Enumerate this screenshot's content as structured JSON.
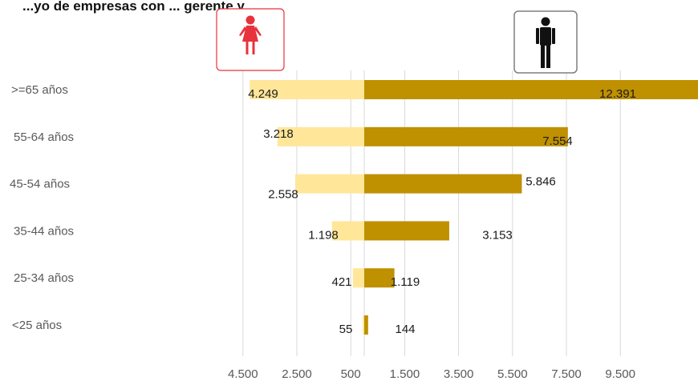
{
  "title_visible": "...yo de empresas con ... gerente y ...",
  "chart_data": {
    "type": "bar",
    "orientation": "horizontal",
    "layout": "population-pyramid",
    "categories": [
      ">=65 años",
      "55-64 años",
      "45-54 años",
      "35-44 años",
      "25-34 años",
      "<25 años"
    ],
    "series": [
      {
        "values": [
          4249,
          3218,
          2558,
          1198,
          421,
          55
        ],
        "color": "#FFE699",
        "side": "left"
      },
      {
        "values": [
          12391,
          7554,
          5846,
          3153,
          1119,
          144
        ],
        "color": "#BF9000",
        "side": "right"
      }
    ],
    "value_labels": {
      "left": [
        "4.249",
        "3.218",
        "2.558",
        "1.198",
        "421",
        "55"
      ],
      "right": [
        "12.391",
        "7.554",
        "5.846",
        "3.153",
        "1.119",
        "144"
      ]
    },
    "x_tick_labels": [
      "4.500",
      "2.500",
      "500",
      "1.500",
      "3.500",
      "5.500",
      "7.500",
      "9.500"
    ],
    "x_tick_values": [
      -4500,
      -2500,
      -500,
      1500,
      3500,
      5500,
      7500,
      9500
    ],
    "grid": true,
    "icons": {
      "left": "female-icon",
      "right": "male-icon",
      "left_color": "#E8323C",
      "right_color": "#111111"
    }
  }
}
